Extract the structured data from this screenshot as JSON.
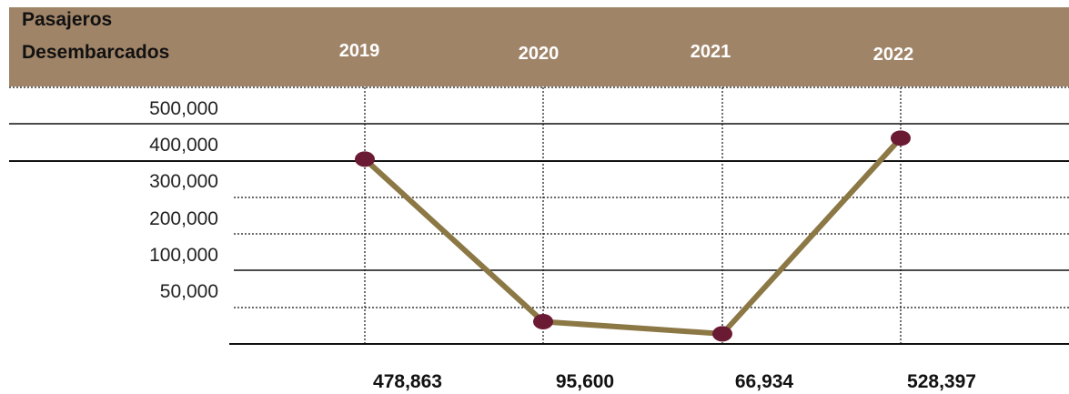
{
  "header": {
    "title_line1": "Pasajeros",
    "title_line2": "Desembarcados",
    "background": "#a08468",
    "year_color": "#ffffff"
  },
  "colors": {
    "line": "#8c7845",
    "marker": "#6b1a33",
    "grid": "#111111"
  },
  "chart_data": {
    "type": "line",
    "categories": [
      "2019",
      "2020",
      "2021",
      "2022"
    ],
    "series": [
      {
        "values": [
          478863,
          95600,
          66934,
          528397
        ]
      }
    ],
    "value_labels": [
      "478,863",
      "95,600",
      "66,934",
      "528,397"
    ],
    "y_tick_labels": [
      "500,000",
      "400,000",
      "300,000",
      "200,000",
      "100,000",
      "50,000"
    ],
    "title": "",
    "xlabel": "",
    "ylabel": "Pasajeros Desembarcados",
    "grid": true,
    "legend": "none"
  }
}
